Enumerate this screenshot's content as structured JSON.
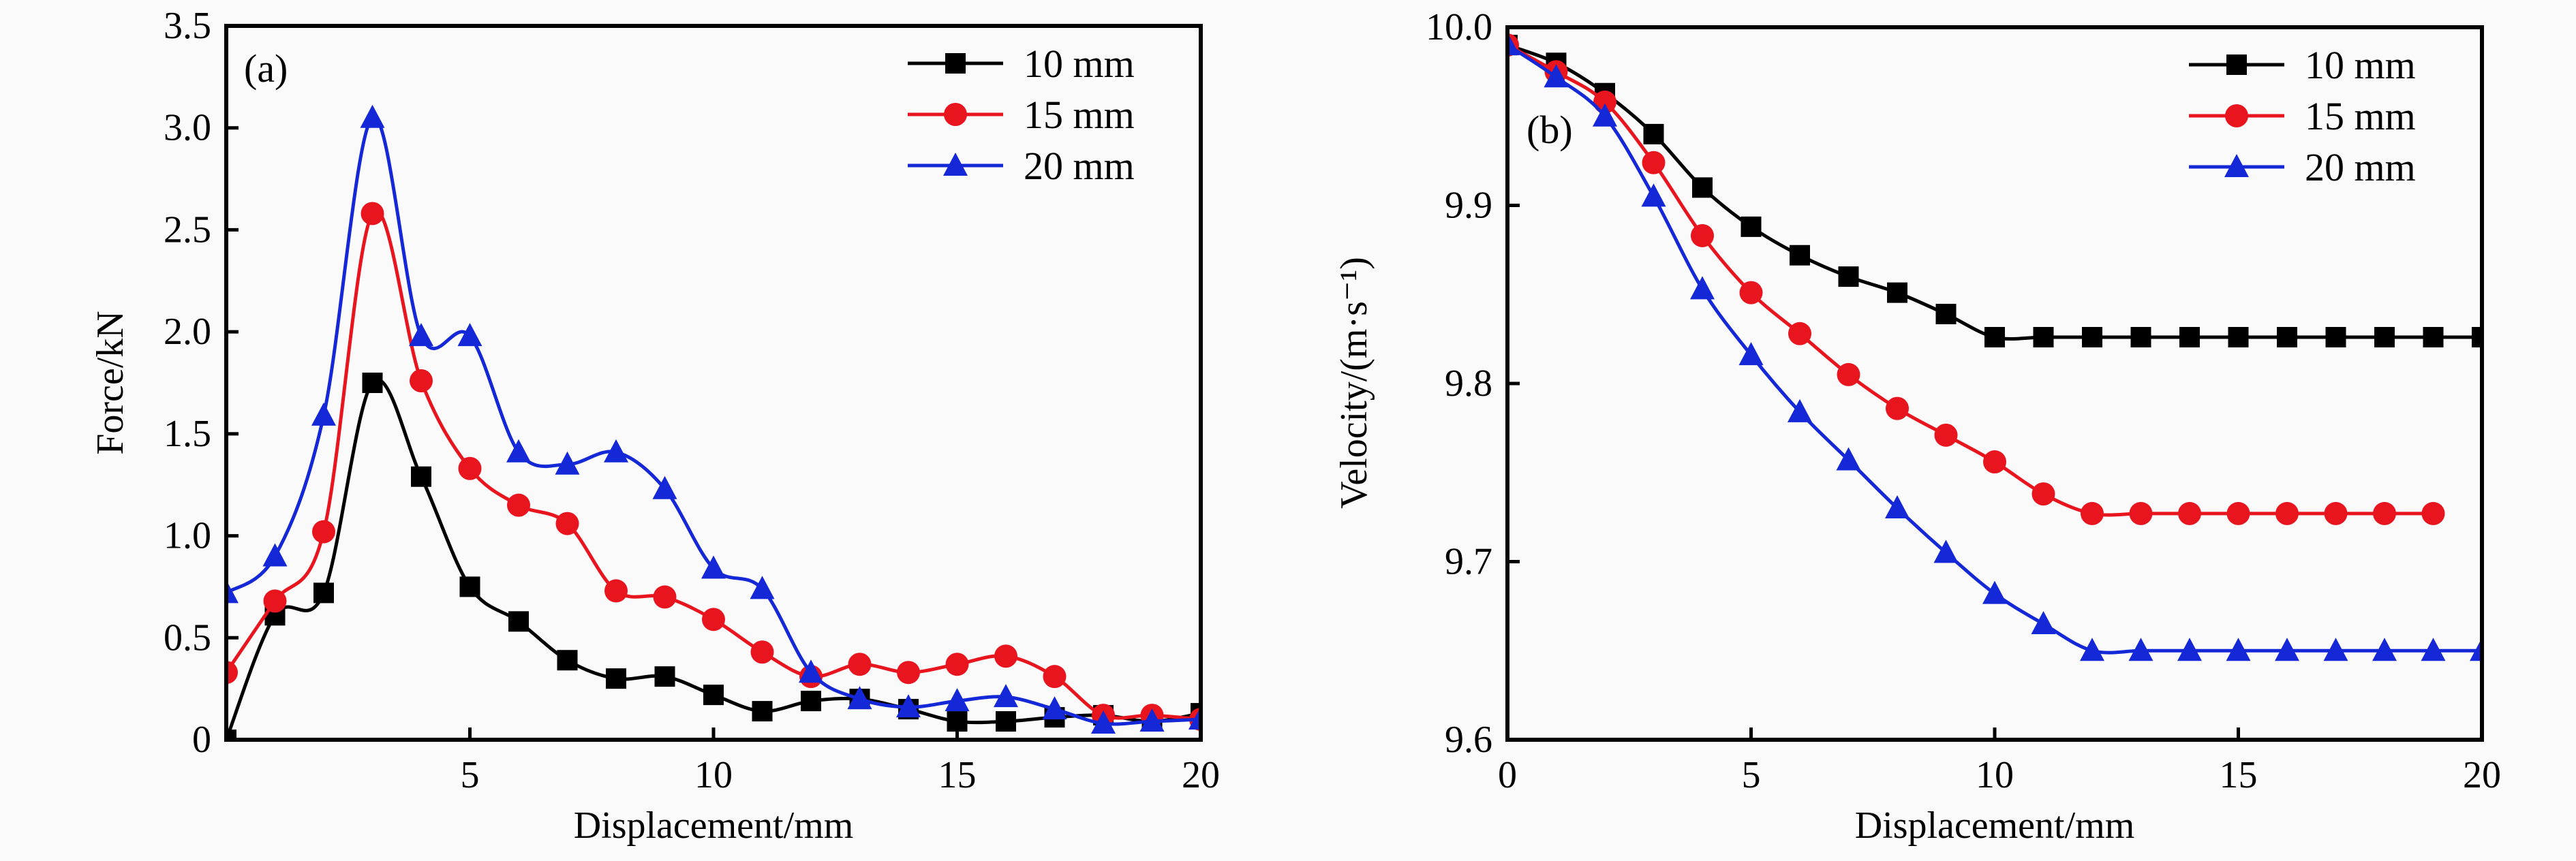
{
  "chart_data": [
    {
      "type": "line",
      "panel_label": "(a)",
      "xlabel": "Displacement/mm",
      "ylabel": "Force/kN",
      "xlim": [
        0,
        20
      ],
      "ylim": [
        0,
        3.5
      ],
      "xticks": [
        5,
        10,
        15,
        20
      ],
      "xtick_labels": [
        "5",
        "10",
        "15",
        "20"
      ],
      "yticks": [
        0,
        0.5,
        1.0,
        1.5,
        2.0,
        2.5,
        3.0,
        3.5
      ],
      "ytick_labels": [
        "0",
        "0.5",
        "1.0",
        "1.5",
        "2.0",
        "2.5",
        "3.0",
        "3.5"
      ],
      "grid": false,
      "legend_position": "top-right",
      "x": [
        0,
        1,
        2,
        3,
        4,
        5,
        6,
        7,
        8,
        9,
        10,
        11,
        12,
        13,
        14,
        15,
        16,
        17,
        18,
        19,
        20
      ],
      "series": [
        {
          "name": "10 mm",
          "color": "#000000",
          "marker": "square",
          "values": [
            0,
            0.61,
            0.72,
            1.75,
            1.29,
            0.75,
            0.58,
            0.39,
            0.3,
            0.31,
            0.22,
            0.14,
            0.19,
            0.2,
            0.15,
            0.09,
            0.09,
            0.11,
            0.12,
            0.09,
            0.13
          ]
        },
        {
          "name": "15 mm",
          "color": "#e8141e",
          "marker": "circle",
          "values": [
            0.33,
            0.68,
            1.02,
            2.58,
            1.76,
            1.33,
            1.15,
            1.06,
            0.73,
            0.7,
            0.59,
            0.43,
            0.31,
            0.37,
            0.33,
            0.37,
            0.41,
            0.31,
            0.12,
            0.12,
            0.1
          ]
        },
        {
          "name": "20 mm",
          "color": "#1428d8",
          "marker": "triangle",
          "values": [
            0.72,
            0.9,
            1.59,
            3.05,
            1.98,
            1.98,
            1.41,
            1.35,
            1.41,
            1.23,
            0.84,
            0.74,
            0.33,
            0.2,
            0.16,
            0.19,
            0.21,
            0.15,
            0.08,
            0.09,
            0.1
          ]
        }
      ]
    },
    {
      "type": "line",
      "panel_label": "(b)",
      "xlabel": "Displacement/mm",
      "ylabel": "Velocity/(m·s⁻¹)",
      "xlim": [
        0,
        20
      ],
      "ylim": [
        9.6,
        10.0
      ],
      "xticks": [
        0,
        5,
        10,
        15,
        20
      ],
      "xtick_labels": [
        "0",
        "5",
        "10",
        "15",
        "20"
      ],
      "yticks": [
        9.6,
        9.7,
        9.8,
        9.9,
        10.0
      ],
      "ytick_labels": [
        "9.6",
        "9.7",
        "9.8",
        "9.9",
        "10.0"
      ],
      "grid": false,
      "legend_position": "top-right",
      "x": [
        0,
        1,
        2,
        3,
        4,
        5,
        6,
        7,
        8,
        9,
        10,
        11,
        12,
        13,
        14,
        15,
        16,
        17,
        18,
        19,
        20
      ],
      "series": [
        {
          "name": "10 mm",
          "color": "#000000",
          "marker": "square",
          "values": [
            9.99,
            9.98,
            9.963,
            9.94,
            9.91,
            9.888,
            9.872,
            9.86,
            9.851,
            9.839,
            9.826,
            9.826,
            9.826,
            9.826,
            9.826,
            9.826,
            9.826,
            9.826,
            9.826,
            9.826,
            9.826
          ]
        },
        {
          "name": "15 mm",
          "color": "#e8141e",
          "marker": "circle",
          "values": [
            9.99,
            9.975,
            9.958,
            9.924,
            9.883,
            9.851,
            9.828,
            9.805,
            9.786,
            9.771,
            9.756,
            9.738,
            9.727,
            9.727,
            9.727,
            9.727,
            9.727,
            9.727,
            9.727,
            9.727,
            null
          ]
        },
        {
          "name": "20 mm",
          "color": "#1428d8",
          "marker": "triangle",
          "values": [
            9.99,
            9.972,
            9.95,
            9.905,
            9.853,
            9.816,
            9.784,
            9.757,
            9.73,
            9.705,
            9.682,
            9.665,
            9.65,
            9.65,
            9.65,
            9.65,
            9.65,
            9.65,
            9.65,
            9.65,
            9.65
          ]
        }
      ]
    }
  ]
}
